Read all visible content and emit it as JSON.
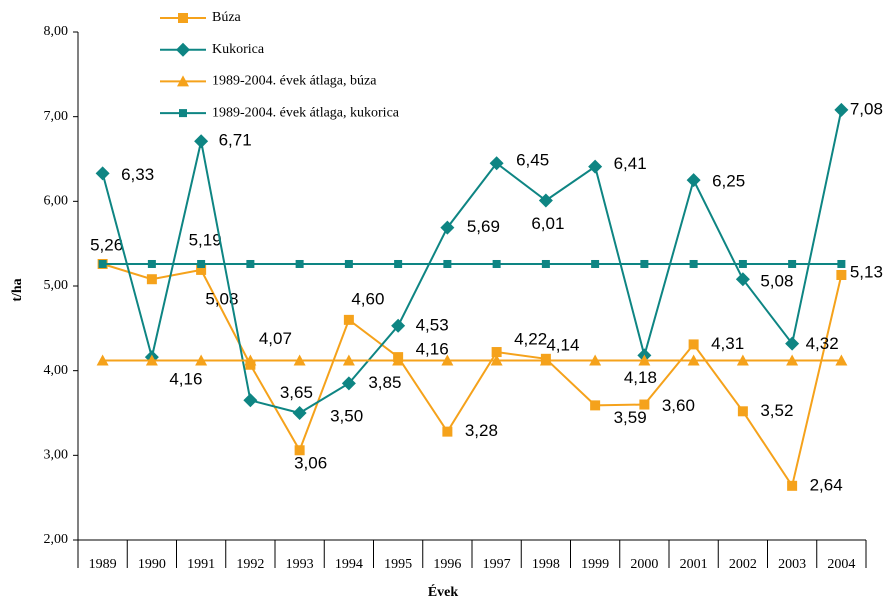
{
  "chart_data": {
    "type": "line",
    "xlabel": "Évek",
    "ylabel": "t/ha",
    "categories": [
      "1989",
      "1990",
      "1991",
      "1992",
      "1993",
      "1994",
      "1995",
      "1996",
      "1997",
      "1998",
      "1999",
      "2000",
      "2001",
      "2002",
      "2003",
      "2004"
    ],
    "ylim": [
      2,
      8
    ],
    "yticks": [
      {
        "value": 2,
        "label": "2,00"
      },
      {
        "value": 3,
        "label": "3,00"
      },
      {
        "value": 4,
        "label": "4,00"
      },
      {
        "value": 5,
        "label": "5,00"
      },
      {
        "value": 6,
        "label": "6,00"
      },
      {
        "value": 7,
        "label": "7,00"
      },
      {
        "value": 8,
        "label": "8,00"
      }
    ],
    "series": [
      {
        "name": "Búza",
        "color": "#f5a21b",
        "marker": "square",
        "values": [
          5.26,
          5.08,
          5.19,
          4.07,
          3.06,
          4.6,
          4.16,
          3.28,
          4.22,
          4.14,
          3.59,
          3.6,
          4.31,
          3.52,
          2.64,
          5.13
        ],
        "value_labels": [
          "5,26",
          "5,08",
          "5,19",
          "4,07",
          "3,06",
          "4,60",
          "4,16",
          "3,28",
          "4,22",
          "4,14",
          "3,59",
          "3,60",
          "4,31",
          "3,52",
          "2,64",
          "5,13"
        ]
      },
      {
        "name": "Kukorica",
        "color": "#0e8583",
        "marker": "diamond",
        "values": [
          6.33,
          4.16,
          6.71,
          3.65,
          3.5,
          3.85,
          4.53,
          5.69,
          6.45,
          6.01,
          6.41,
          4.18,
          6.25,
          5.08,
          4.32,
          7.08
        ],
        "value_labels": [
          "6,33",
          "4,16",
          "6,71",
          "3,65",
          "3,50",
          "3,85",
          "4,53",
          "5,69",
          "6,45",
          "6,01",
          "6,41",
          "4,18",
          "6,25",
          "5,08",
          "4,32",
          "7,08"
        ]
      },
      {
        "name": "1989-2004. évek átlaga, búza",
        "color": "#f5a21b",
        "marker": "triangle",
        "values": [
          4.12,
          4.12,
          4.12,
          4.12,
          4.12,
          4.12,
          4.12,
          4.12,
          4.12,
          4.12,
          4.12,
          4.12,
          4.12,
          4.12,
          4.12,
          4.12
        ]
      },
      {
        "name": "1989-2004. évek átlaga, kukorica",
        "color": "#0e8583",
        "marker": "smallsquare",
        "values": [
          5.26,
          5.26,
          5.26,
          5.26,
          5.26,
          5.26,
          5.26,
          5.26,
          5.26,
          5.26,
          5.26,
          5.26,
          5.26,
          5.26,
          5.26,
          5.26
        ]
      }
    ]
  }
}
